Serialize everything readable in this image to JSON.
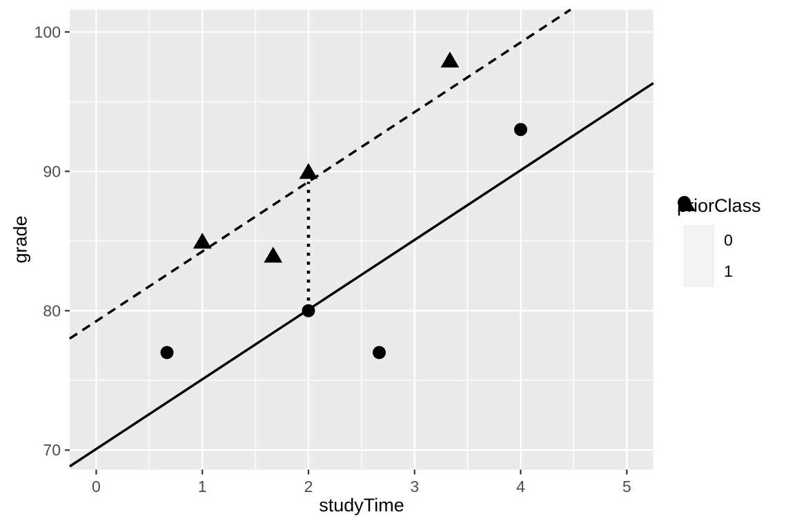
{
  "chart_data": {
    "type": "scatter",
    "title": "",
    "xlabel": "studyTime",
    "ylabel": "grade",
    "xlim": [
      -0.25,
      5.25
    ],
    "ylim": [
      68.6,
      101.6
    ],
    "x_ticks": [
      0,
      1,
      2,
      3,
      4,
      5
    ],
    "y_ticks": [
      70,
      80,
      90,
      100
    ],
    "x_minor_ticks": [
      0.5,
      1.5,
      2.5,
      3.5,
      4.5
    ],
    "y_minor_ticks": [
      75,
      85,
      95
    ],
    "grid": "white major and minor gridlines on gray panel",
    "legend": {
      "title": "priorClass",
      "position": "right",
      "entries": [
        {
          "label": "0",
          "marker": "circle"
        },
        {
          "label": "1",
          "marker": "triangle"
        }
      ]
    },
    "series": [
      {
        "name": "0",
        "marker": "circle",
        "points": [
          [
            0.667,
            77
          ],
          [
            2,
            80
          ],
          [
            2.667,
            77
          ],
          [
            4,
            93
          ]
        ]
      },
      {
        "name": "1",
        "marker": "triangle",
        "points": [
          [
            1,
            85
          ],
          [
            1.667,
            84
          ],
          [
            2,
            90
          ],
          [
            3.333,
            98
          ]
        ]
      }
    ],
    "fit_lines": [
      {
        "name": "fit priorClass 0",
        "style": "solid",
        "slope": 5,
        "intercept": 70.08
      },
      {
        "name": "fit priorClass 1",
        "style": "dashed",
        "slope": 5,
        "intercept": 79.25
      }
    ],
    "difference_segment": {
      "style": "dotted",
      "x": 2,
      "y_from": 80.08,
      "y_to": 89.25
    }
  },
  "style": {
    "panel_bg": "#EBEBEB",
    "grid_color": "#FFFFFF",
    "point_color": "#000000",
    "line_color": "#000000",
    "tick_mark_color": "#333333",
    "tick_label_color": "#4D4D4D",
    "axis_title_color": "#000000",
    "legend_key_bg": "#F2F2F2"
  }
}
